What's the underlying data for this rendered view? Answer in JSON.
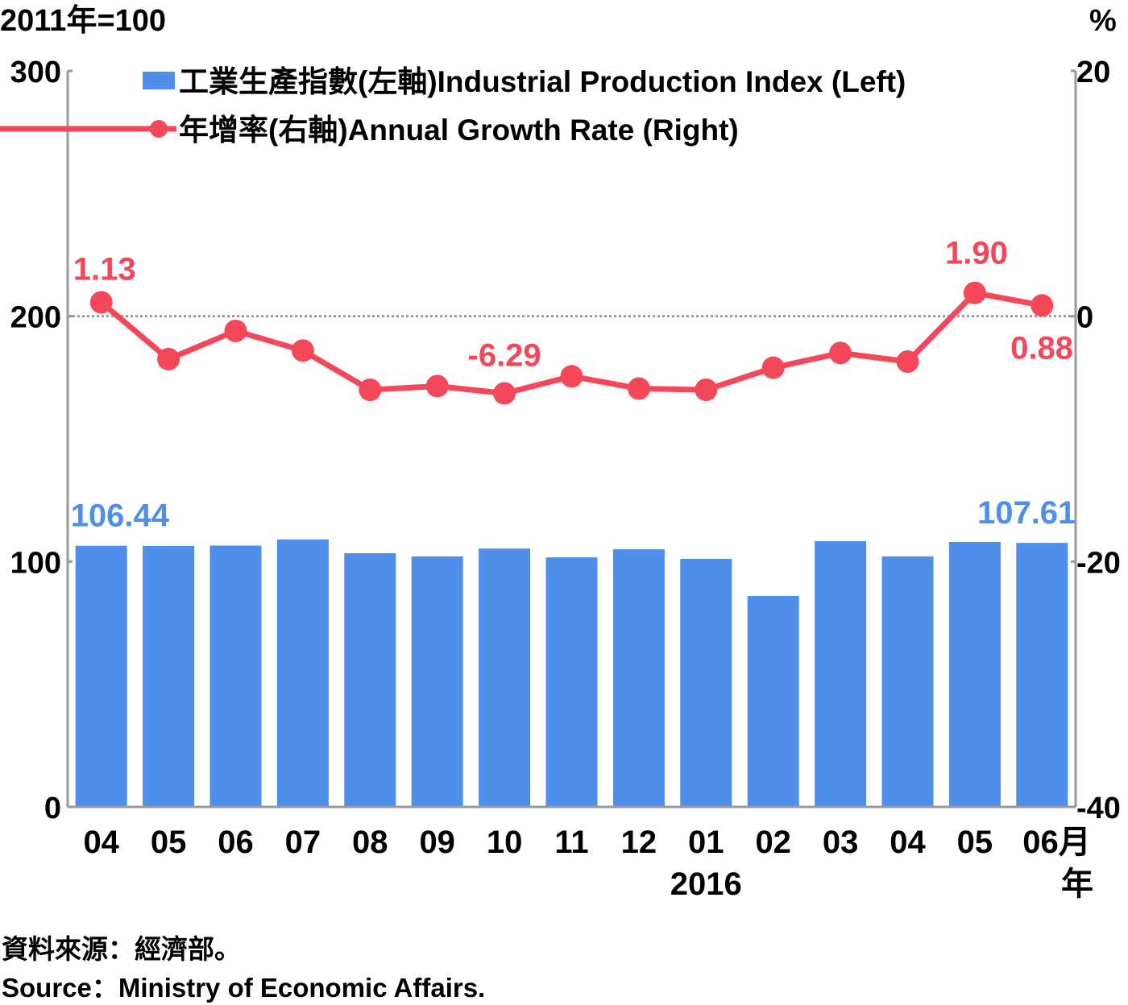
{
  "chart_data": {
    "type": "bar+line",
    "left_unit": "2011年=100",
    "right_unit": "%",
    "left_axis": {
      "ylim": [
        0,
        300
      ],
      "ticks": [
        "0",
        "100",
        "200",
        "300"
      ]
    },
    "right_axis": {
      "ylim": [
        -40,
        20
      ],
      "ticks": [
        "-40",
        "-20",
        "0",
        "20"
      ]
    },
    "categories": [
      "04",
      "05",
      "06",
      "07",
      "08",
      "09",
      "10",
      "11",
      "12",
      "01",
      "02",
      "03",
      "04",
      "05",
      "06月"
    ],
    "year_label": "2016",
    "year_label_index": 9,
    "year_suffix": "年",
    "series": [
      {
        "name": "工業生產指數(左軸)Industrial Production Index (Left)",
        "type": "bar",
        "axis": "left",
        "color": "#4f8fec",
        "values": [
          106.44,
          106.4,
          106.5,
          109.0,
          103.4,
          102.1,
          105.3,
          101.7,
          105.0,
          101.1,
          86.0,
          108.3,
          102.1,
          108.0,
          107.61
        ],
        "labels": {
          "0": "106.44",
          "14": "107.61"
        }
      },
      {
        "name": "年增率(右軸)Annual Growth Rate (Right)",
        "type": "line",
        "axis": "right",
        "color": "#f5475a",
        "values": [
          1.13,
          -3.5,
          -1.2,
          -2.8,
          -6.0,
          -5.7,
          -6.29,
          -4.9,
          -5.9,
          -6.0,
          -4.2,
          -3.0,
          -3.7,
          1.9,
          0.88
        ],
        "labels": {
          "0": "1.13",
          "6": "-6.29",
          "13": "1.90",
          "14": "0.88"
        }
      }
    ],
    "reference_line": {
      "axis": "right",
      "value": 0,
      "style": "dotted"
    },
    "legend_placement": "top-left"
  },
  "source": {
    "zh": "資料來源：經濟部。",
    "en": "Source：Ministry of Economic Affairs."
  }
}
